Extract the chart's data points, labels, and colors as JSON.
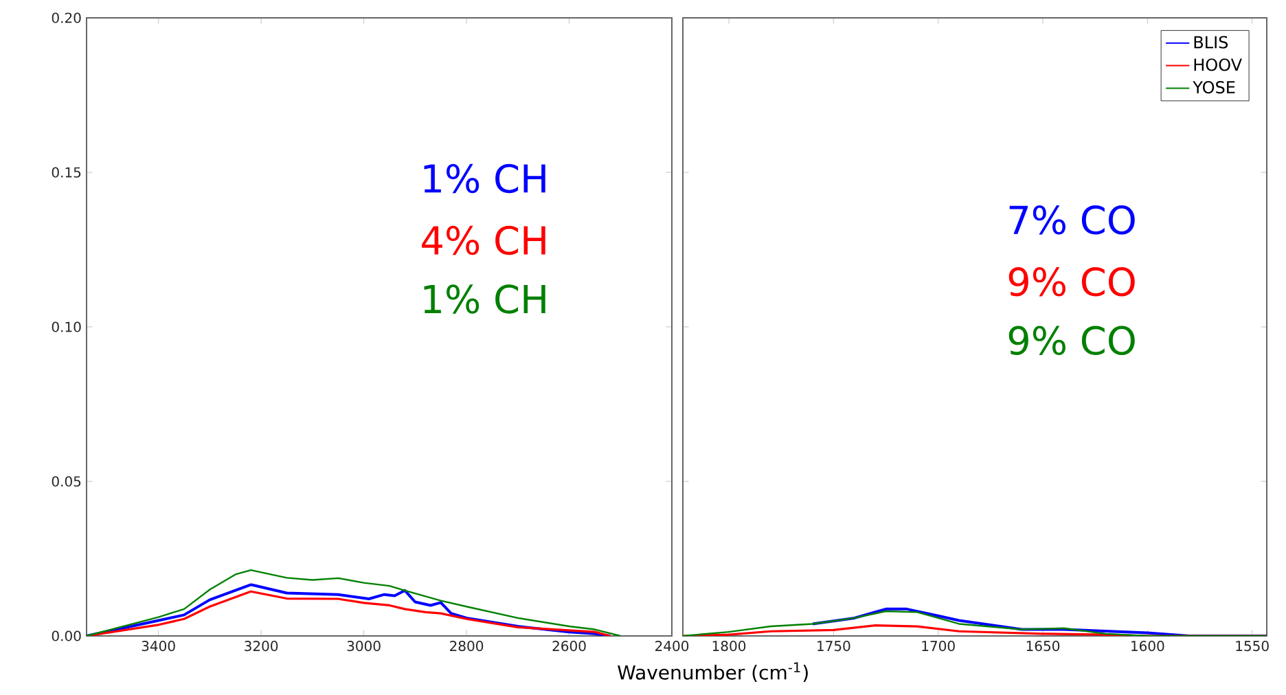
{
  "chart_data": [
    {
      "type": "line",
      "xlim": [
        3540,
        2400
      ],
      "ylim": [
        0,
        0.2
      ],
      "xticks": [
        3400,
        3200,
        3000,
        2800,
        2600,
        2400
      ],
      "yticks": [
        {
          "value": 0,
          "label": "0.00"
        },
        0.05,
        {
          "value": 0.1,
          "label": "0.10"
        },
        0.15,
        {
          "value": 0.2,
          "label": "0.20"
        }
      ],
      "marker": "none",
      "line_style": "solid",
      "annotations": [
        "1% CH",
        "4% CH",
        "1% CH"
      ],
      "series": [
        {
          "color": "#0000ff",
          "x": [
            3540,
            3400,
            3350,
            3300,
            3220,
            3150,
            3050,
            2990,
            2960,
            2940,
            2920,
            2900,
            2870,
            2850,
            2830,
            2800,
            2700,
            2600,
            2550,
            2520
          ],
          "values": [
            0,
            0.005,
            0.0068,
            0.0117,
            0.0166,
            0.0139,
            0.0134,
            0.012,
            0.0134,
            0.013,
            0.0147,
            0.011,
            0.0099,
            0.0108,
            0.0073,
            0.0058,
            0.0031,
            0.0013,
            0.0007,
            0
          ]
        },
        {
          "color": "#ff0000",
          "x": [
            3540,
            3400,
            3350,
            3300,
            3220,
            3150,
            3050,
            3000,
            2950,
            2920,
            2880,
            2850,
            2800,
            2700,
            2600,
            2550,
            2520
          ],
          "values": [
            0,
            0.0036,
            0.0055,
            0.0095,
            0.0144,
            0.0121,
            0.012,
            0.0107,
            0.0099,
            0.0087,
            0.0077,
            0.0073,
            0.0055,
            0.0028,
            0.0018,
            0.0013,
            0
          ]
        },
        {
          "color": "#008000",
          "x": [
            3540,
            3400,
            3350,
            3300,
            3250,
            3220,
            3150,
            3100,
            3050,
            3000,
            2950,
            2920,
            2850,
            2800,
            2700,
            2600,
            2550,
            2500
          ],
          "values": [
            0,
            0.0061,
            0.0087,
            0.015,
            0.0199,
            0.0213,
            0.0188,
            0.0181,
            0.0187,
            0.0172,
            0.0162,
            0.0147,
            0.0114,
            0.0095,
            0.0058,
            0.0031,
            0.0021,
            0
          ]
        }
      ]
    },
    {
      "type": "line",
      "xlim": [
        1822,
        1543
      ],
      "ylim": [
        0,
        0.2
      ],
      "xticks": [
        1800,
        1750,
        1700,
        1650,
        1600,
        1550
      ],
      "yticks": [
        {
          "value": 0,
          "label": null
        },
        {
          "value": 0.05,
          "label": null
        },
        {
          "value": 0.1,
          "label": null
        },
        {
          "value": 0.15,
          "label": null
        },
        {
          "value": 0.2,
          "label": null
        }
      ],
      "tick_labels": "x",
      "marker": "none",
      "line_style": "solid",
      "legend": "top right",
      "xlabel": "Wavenumber (cm$^{-1}$)",
      "annotations": [
        "7% CO",
        "9% CO",
        "9% CO"
      ],
      "series": [
        {
          "name": "BLIS",
          "color": "#0000ff",
          "x": [
            1760,
            1740,
            1725,
            1715,
            1700,
            1690,
            1660,
            1640,
            1600,
            1580,
            1543
          ],
          "values": [
            0.0039,
            0.0058,
            0.0087,
            0.0087,
            0.0065,
            0.005,
            0.0021,
            0.0021,
            0.001,
            0,
            0
          ]
        },
        {
          "name": "HOOV",
          "color": "#ff0000",
          "x": [
            1822,
            1800,
            1780,
            1750,
            1730,
            1710,
            1690,
            1650,
            1620,
            1600,
            1543
          ],
          "values": [
            0,
            0.0004,
            0.0015,
            0.0019,
            0.0034,
            0.0031,
            0.0015,
            0.0007,
            0.0004,
            0,
            0
          ]
        },
        {
          "name": "YOSE",
          "color": "#008000",
          "x": [
            1822,
            1800,
            1780,
            1760,
            1740,
            1725,
            1710,
            1690,
            1660,
            1640,
            1620,
            1600,
            1543
          ],
          "values": [
            0,
            0.0013,
            0.0031,
            0.0039,
            0.0058,
            0.008,
            0.0077,
            0.0039,
            0.0021,
            0.0025,
            0.0007,
            0,
            0
          ]
        }
      ]
    }
  ]
}
